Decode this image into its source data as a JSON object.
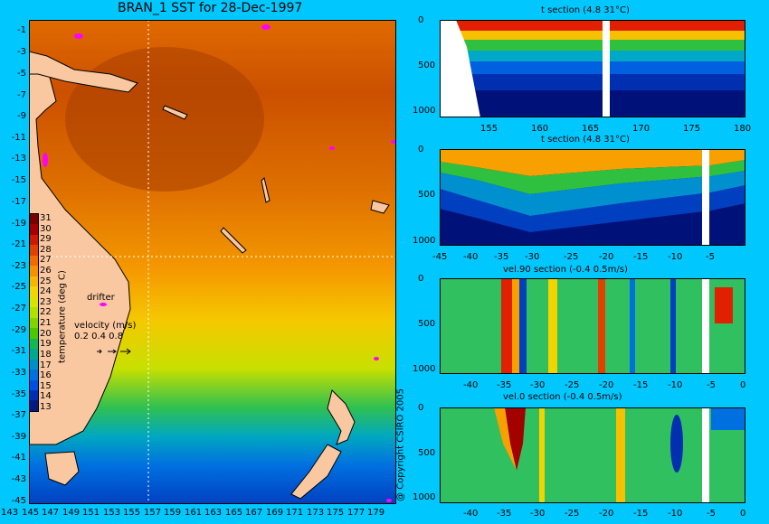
{
  "map": {
    "title": "BRAN_1 SST for 28-Dec-1997",
    "lon_ticks": [
      "143",
      "145",
      "147",
      "149",
      "151",
      "153",
      "155",
      "157",
      "159",
      "161",
      "163",
      "165",
      "167",
      "169",
      "171",
      "173",
      "175",
      "177",
      "179"
    ],
    "lat_ticks": [
      "-1",
      "-3",
      "-5",
      "-7",
      "-9",
      "-11",
      "-13",
      "-15",
      "-17",
      "-19",
      "-21",
      "-23",
      "-25",
      "-27",
      "-29",
      "-31",
      "-33",
      "-35",
      "-37",
      "-39",
      "-41",
      "-43",
      "-45"
    ],
    "colorbar": {
      "labels": [
        "31",
        "30",
        "29",
        "28",
        "27",
        "26",
        "25",
        "24",
        "23",
        "22",
        "21",
        "20",
        "19",
        "18",
        "17",
        "16",
        "15",
        "14",
        "13"
      ],
      "title": "temperature (deg C)",
      "colors": [
        "#7a0000",
        "#a30000",
        "#cc1a00",
        "#e04000",
        "#ef6a00",
        "#f59000",
        "#f7b400",
        "#f2d500",
        "#d9e300",
        "#b2e000",
        "#82d400",
        "#4cc800",
        "#14b850",
        "#00a890",
        "#0090c8",
        "#0070e0",
        "#0050e0",
        "#0030b0",
        "#001a80"
      ]
    },
    "drifter_label": "drifter",
    "velocity_label": "velocity (m/s)",
    "velocity_scale": "0.2 0.4 0.8",
    "copyright": "@ Copyright CSIRO 2005"
  },
  "sections": [
    {
      "title": "t section (4.8      31°C)",
      "x_ticks": [
        "155",
        "160",
        "165",
        "170",
        "175",
        "180"
      ],
      "y_ticks": [
        "0",
        "500",
        "1000"
      ]
    },
    {
      "title": "t section (4.8      31°C)",
      "x_ticks": [
        "-45",
        "-40",
        "-35",
        "-30",
        "-25",
        "-20",
        "-15",
        "-10",
        "-5"
      ],
      "y_ticks": [
        "0",
        "500",
        "1000"
      ]
    },
    {
      "title": "vel.90 section (-0.4      0.5m/s)",
      "x_ticks": [
        "-40",
        "-35",
        "-30",
        "-25",
        "-20",
        "-15",
        "-10",
        "-5",
        "0"
      ],
      "y_ticks": [
        "0",
        "500",
        "1000"
      ]
    },
    {
      "title": "vel.0 section (-0.4      0.5m/s)",
      "x_ticks": [
        "-40",
        "-35",
        "-30",
        "-25",
        "-20",
        "-15",
        "-10",
        "-5",
        "0"
      ],
      "y_ticks": [
        "0",
        "500",
        "1000"
      ]
    }
  ]
}
